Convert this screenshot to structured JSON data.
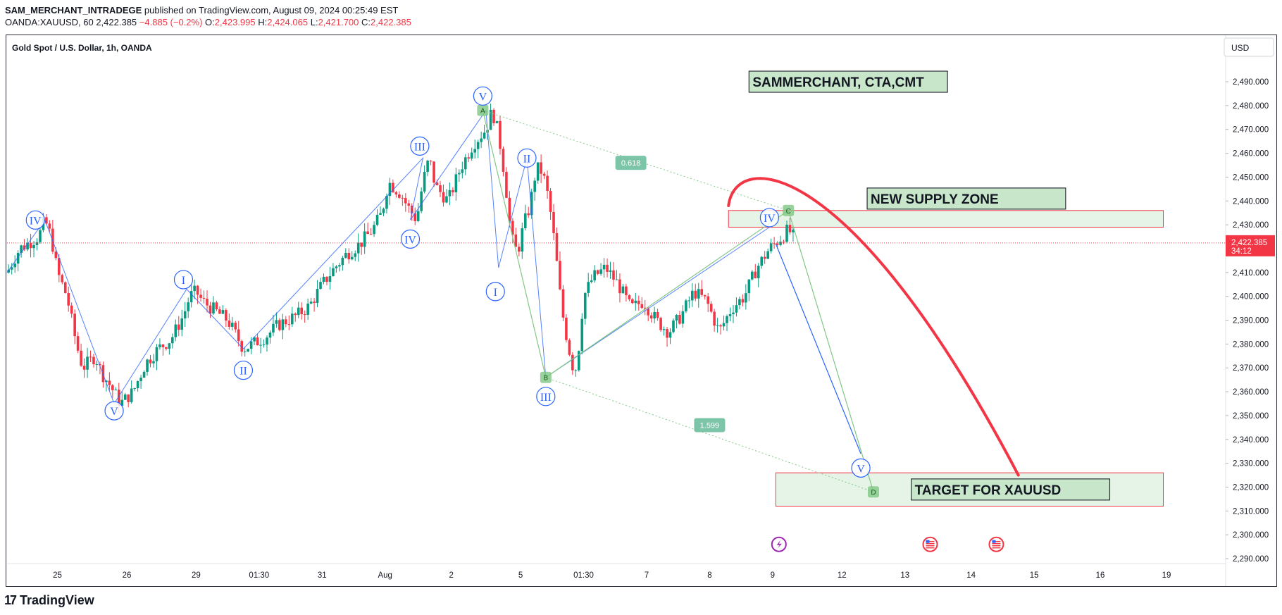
{
  "header": {
    "author": "SAM_MERCHANT_INTRADEGE",
    "published_text": "published on TradingView.com, August 09, 2024 00:25:49 EST",
    "symbol": "OANDA:XAUUSD, 60",
    "last": "2,422.385",
    "change": "−4.885 (−0.2%)",
    "o_label": "O:",
    "o": "2,423.995",
    "h_label": "H:",
    "h": "2,424.065",
    "l_label": "L:",
    "l": "2,421.700",
    "c_label": "C:",
    "c": "2,422.385"
  },
  "footer": {
    "brand": "TradingView",
    "logo": "17"
  },
  "chart_data": {
    "type": "candlestick",
    "title": "Gold Spot / U.S. Dollar, 1h, OANDA",
    "currency": "USD",
    "ylim": [
      2285,
      2500
    ],
    "yticks": [
      2290,
      2300,
      2310,
      2320,
      2330,
      2340,
      2350,
      2360,
      2370,
      2380,
      2390,
      2400,
      2410,
      2420,
      2430,
      2440,
      2450,
      2460,
      2470,
      2480,
      2490
    ],
    "ytick_labels": [
      "2,290.000",
      "2,300.000",
      "2,310.000",
      "2,320.000",
      "2,330.000",
      "2,340.000",
      "2,350.000",
      "2,360.000",
      "2,370.000",
      "2,380.000",
      "2,390.000",
      "2,400.000",
      "2,410.000",
      "2,420.000",
      "2,430.000",
      "2,440.000",
      "2,450.000",
      "2,460.000",
      "2,470.000",
      "2,480.000",
      "2,490.000"
    ],
    "xlim": [
      0,
      385
    ],
    "xticks": [
      {
        "t": 16,
        "label": "25"
      },
      {
        "t": 38,
        "label": "26"
      },
      {
        "t": 60,
        "label": "29"
      },
      {
        "t": 80,
        "label": "01:30"
      },
      {
        "t": 100,
        "label": "31"
      },
      {
        "t": 120,
        "label": "Aug"
      },
      {
        "t": 141,
        "label": "2"
      },
      {
        "t": 163,
        "label": "5"
      },
      {
        "t": 183,
        "label": "01:30"
      },
      {
        "t": 203,
        "label": "7"
      },
      {
        "t": 223,
        "label": "8"
      },
      {
        "t": 243,
        "label": "9"
      },
      {
        "t": 265,
        "label": "12"
      },
      {
        "t": 285,
        "label": "13"
      },
      {
        "t": 306,
        "label": "14"
      },
      {
        "t": 326,
        "label": "15"
      },
      {
        "t": 347,
        "label": "16"
      },
      {
        "t": 368,
        "label": "19"
      }
    ],
    "price_path": [
      [
        0,
        2410
      ],
      [
        4,
        2420
      ],
      [
        10,
        2425
      ],
      [
        12,
        2432
      ],
      [
        14,
        2425
      ],
      [
        16,
        2410
      ],
      [
        19,
        2400
      ],
      [
        22,
        2380
      ],
      [
        24,
        2370
      ],
      [
        28,
        2375
      ],
      [
        30,
        2368
      ],
      [
        33,
        2362
      ],
      [
        36,
        2355
      ],
      [
        40,
        2360
      ],
      [
        44,
        2372
      ],
      [
        48,
        2378
      ],
      [
        52,
        2382
      ],
      [
        56,
        2392
      ],
      [
        58,
        2400
      ],
      [
        60,
        2402
      ],
      [
        62,
        2398
      ],
      [
        66,
        2394
      ],
      [
        70,
        2390
      ],
      [
        73,
        2383
      ],
      [
        75,
        2378
      ],
      [
        78,
        2380
      ],
      [
        82,
        2383
      ],
      [
        86,
        2388
      ],
      [
        92,
        2392
      ],
      [
        96,
        2396
      ],
      [
        100,
        2405
      ],
      [
        104,
        2412
      ],
      [
        108,
        2418
      ],
      [
        112,
        2422
      ],
      [
        116,
        2428
      ],
      [
        119,
        2435
      ],
      [
        121,
        2448
      ],
      [
        125,
        2443
      ],
      [
        127,
        2438
      ],
      [
        130,
        2432
      ],
      [
        132,
        2448
      ],
      [
        134,
        2458
      ],
      [
        136,
        2446
      ],
      [
        140,
        2440
      ],
      [
        144,
        2454
      ],
      [
        148,
        2464
      ],
      [
        152,
        2470
      ],
      [
        154,
        2478
      ],
      [
        156,
        2468
      ],
      [
        158,
        2450
      ],
      [
        160,
        2425
      ],
      [
        162,
        2418
      ],
      [
        164,
        2430
      ],
      [
        166,
        2438
      ],
      [
        168,
        2454
      ],
      [
        170,
        2452
      ],
      [
        172,
        2440
      ],
      [
        174,
        2420
      ],
      [
        176,
        2395
      ],
      [
        178,
        2380
      ],
      [
        180,
        2368
      ],
      [
        181,
        2372
      ],
      [
        183,
        2400
      ],
      [
        186,
        2408
      ],
      [
        190,
        2412
      ],
      [
        194,
        2405
      ],
      [
        198,
        2395
      ],
      [
        202,
        2398
      ],
      [
        206,
        2390
      ],
      [
        210,
        2385
      ],
      [
        214,
        2392
      ],
      [
        218,
        2402
      ],
      [
        222,
        2398
      ],
      [
        226,
        2385
      ],
      [
        230,
        2395
      ],
      [
        234,
        2400
      ],
      [
        238,
        2412
      ],
      [
        242,
        2420
      ],
      [
        246,
        2425
      ],
      [
        248,
        2428
      ],
      [
        250,
        2424
      ]
    ],
    "last_price": 2422.385,
    "last_price_label": "2,422.385",
    "countdown": "34:12",
    "zones": [
      {
        "name": "new-supply-zone",
        "t0": 229,
        "t1": 367,
        "p0": 2429,
        "p1": 2436
      },
      {
        "name": "target-zone",
        "t0": 244,
        "t1": 367,
        "p0": 2312,
        "p1": 2326
      }
    ],
    "labels_boxes": [
      {
        "name": "author-box",
        "text": "SAMMERCHANT, CTA,CMT",
        "t0": 235.5,
        "t1": 298.5,
        "p": 2490
      },
      {
        "name": "supply-label-box",
        "text": "NEW SUPPLY ZONE",
        "t0": 273,
        "t1": 336,
        "p": 2441
      },
      {
        "name": "target-label-box",
        "text": "TARGET FOR XAUUSD",
        "t0": 287,
        "t1": 350,
        "p": 2319
      }
    ],
    "wave_labels": [
      {
        "text": "IV",
        "t": 9,
        "p": 2432
      },
      {
        "text": "V",
        "t": 34,
        "p": 2352
      },
      {
        "text": "I",
        "t": 56,
        "p": 2407
      },
      {
        "text": "II",
        "t": 75,
        "p": 2369
      },
      {
        "text": "III",
        "t": 131,
        "p": 2463
      },
      {
        "text": "IV",
        "t": 128,
        "p": 2424
      },
      {
        "text": "V",
        "t": 151,
        "p": 2484
      },
      {
        "text": "II",
        "t": 165,
        "p": 2458
      },
      {
        "text": "I",
        "t": 155,
        "p": 2402
      },
      {
        "text": "III",
        "t": 171,
        "p": 2358
      },
      {
        "text": "IV",
        "t": 242,
        "p": 2433
      },
      {
        "text": "V",
        "t": 271,
        "p": 2328
      }
    ],
    "impulse_lines": [
      [
        [
          0,
          2410
        ],
        [
          12,
          2432
        ],
        [
          34,
          2355
        ],
        [
          57,
          2403
        ],
        [
          75,
          2378
        ],
        [
          132,
          2458
        ],
        [
          128,
          2432
        ],
        [
          152,
          2478
        ],
        [
          156,
          2412
        ],
        [
          165,
          2458
        ],
        [
          171,
          2366
        ],
        [
          242,
          2429
        ]
      ]
    ],
    "harmonic_points": [
      {
        "letter": "A",
        "t": 151,
        "p": 2478
      },
      {
        "letter": "B",
        "t": 171,
        "p": 2366
      },
      {
        "letter": "C",
        "t": 248,
        "p": 2436
      },
      {
        "letter": "D",
        "t": 275,
        "p": 2318
      }
    ],
    "ratios": [
      {
        "text": "0.618",
        "t": 198,
        "p": 2456
      },
      {
        "text": "1.599",
        "t": 223,
        "p": 2346
      }
    ],
    "projection_line": [
      [
        244,
        2422
      ],
      [
        271,
        2334
      ]
    ],
    "arc": {
      "start": [
        229,
        2438
      ],
      "peak": [
        241,
        2453
      ],
      "end": [
        321,
        2325
      ],
      "color": "#f23645"
    },
    "event_icons": [
      {
        "kind": "lightning",
        "t": 245,
        "p": 2296
      },
      {
        "kind": "flag",
        "t": 293,
        "p": 2296
      },
      {
        "kind": "flag",
        "t": 314,
        "p": 2296
      }
    ]
  }
}
